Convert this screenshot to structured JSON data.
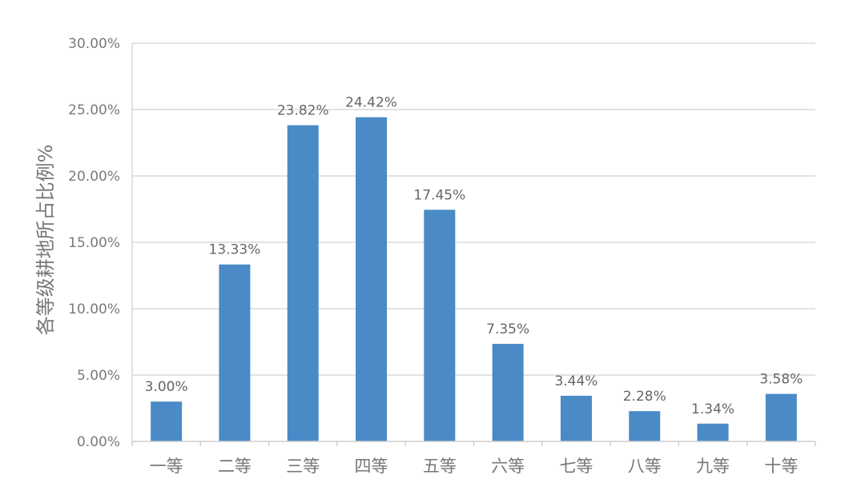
{
  "chart_data": {
    "type": "bar",
    "title": "",
    "xlabel": "",
    "ylabel": "各等级耕地所占比例%",
    "categories": [
      "一等",
      "二等",
      "三等",
      "四等",
      "五等",
      "六等",
      "七等",
      "八等",
      "九等",
      "十等"
    ],
    "values": [
      3.0,
      13.33,
      23.82,
      24.42,
      17.45,
      7.35,
      3.44,
      2.28,
      1.34,
      3.58
    ],
    "data_labels": [
      "3.00%",
      "13.33%",
      "23.82%",
      "24.42%",
      "17.45%",
      "7.35%",
      "3.44%",
      "2.28%",
      "1.34%",
      "3.58%"
    ],
    "ylim": [
      0,
      30
    ],
    "yticks": [
      0,
      5,
      10,
      15,
      20,
      25,
      30
    ],
    "ytick_labels": [
      "0.00%",
      "5.00%",
      "10.00%",
      "15.00%",
      "20.00%",
      "25.00%",
      "30.00%"
    ],
    "grid": true,
    "legend": "none",
    "colors": {
      "bar": "#4a8ac6",
      "grid": "#d9d9d9"
    }
  }
}
